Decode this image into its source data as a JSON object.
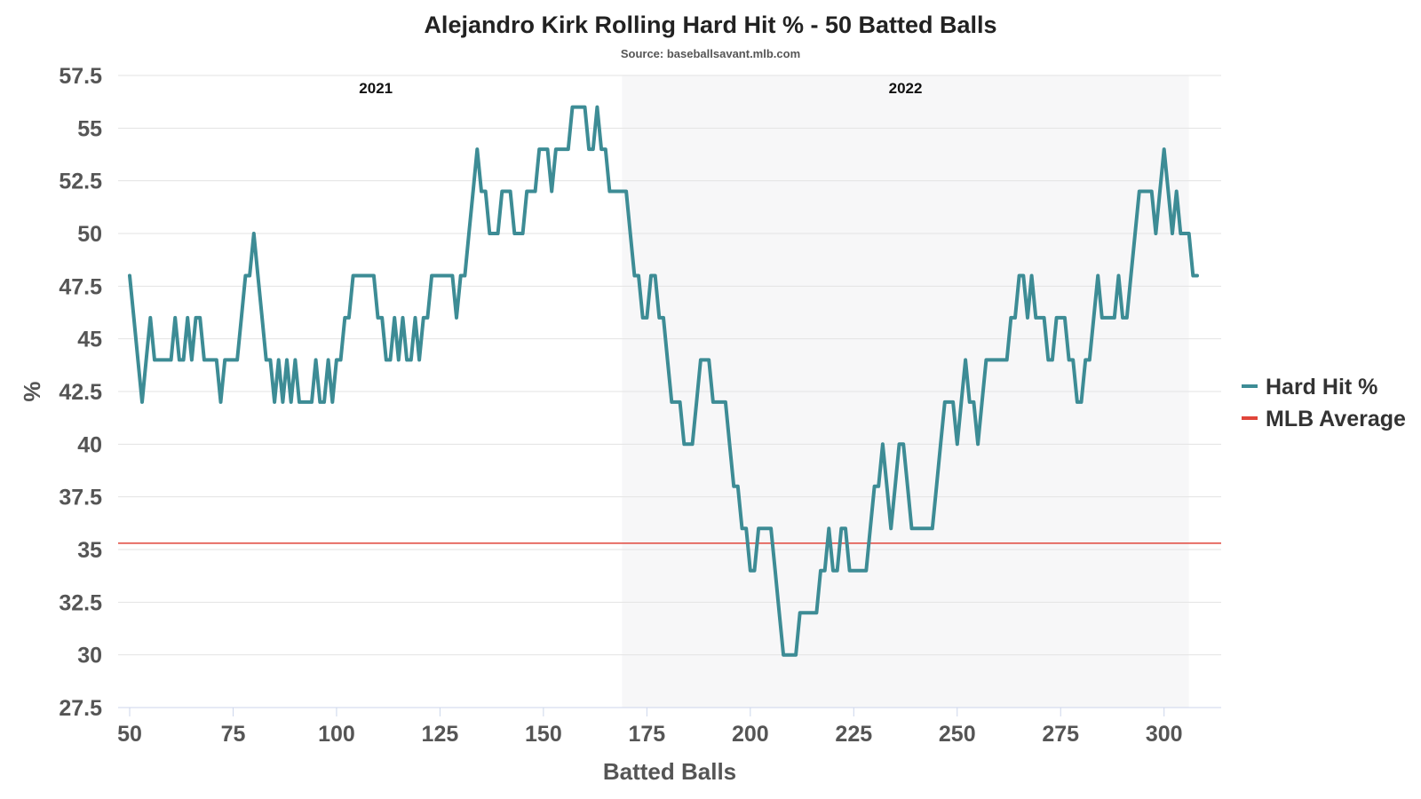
{
  "chart_data": {
    "type": "line",
    "title": "Alejandro Kirk Rolling Hard Hit % - 50 Batted Balls",
    "subtitle": "Source: baseballsavant.mlb.com",
    "xlabel": "Batted Balls",
    "ylabel": "%",
    "xlim": [
      50,
      305
    ],
    "ylim": [
      27.5,
      57.5
    ],
    "x_ticks": [
      "50",
      "75",
      "100",
      "125",
      "150",
      "175",
      "200",
      "225",
      "250",
      "275",
      "300"
    ],
    "y_ticks": [
      "27.5",
      "30",
      "32.5",
      "35",
      "37.5",
      "40",
      "42.5",
      "45",
      "47.5",
      "50",
      "52.5",
      "55",
      "57.5"
    ],
    "grid": true,
    "legend_position": "right",
    "seasons": [
      {
        "label": "2021",
        "x_range": [
          50,
          169
        ],
        "shaded": false
      },
      {
        "label": "2022",
        "x_range": [
          169,
          306
        ],
        "shaded": true
      }
    ],
    "reference_lines": [
      {
        "name": "MLB Average",
        "y": 35.3,
        "color": "#e0453a"
      }
    ],
    "series": [
      {
        "name": "Hard Hit %",
        "color": "#3d8c95",
        "points": [
          [
            50,
            48
          ],
          [
            51,
            46
          ],
          [
            52,
            44
          ],
          [
            53,
            42
          ],
          [
            54,
            44
          ],
          [
            55,
            46
          ],
          [
            56,
            44
          ],
          [
            57,
            44
          ],
          [
            58,
            44
          ],
          [
            59,
            44
          ],
          [
            60,
            44
          ],
          [
            61,
            46
          ],
          [
            62,
            44
          ],
          [
            63,
            44
          ],
          [
            64,
            46
          ],
          [
            65,
            44
          ],
          [
            66,
            46
          ],
          [
            67,
            46
          ],
          [
            68,
            44
          ],
          [
            69,
            44
          ],
          [
            70,
            44
          ],
          [
            71,
            44
          ],
          [
            72,
            42
          ],
          [
            73,
            44
          ],
          [
            74,
            44
          ],
          [
            75,
            44
          ],
          [
            76,
            44
          ],
          [
            77,
            46
          ],
          [
            78,
            48
          ],
          [
            79,
            48
          ],
          [
            80,
            50
          ],
          [
            81,
            48
          ],
          [
            82,
            46
          ],
          [
            83,
            44
          ],
          [
            84,
            44
          ],
          [
            85,
            42
          ],
          [
            86,
            44
          ],
          [
            87,
            42
          ],
          [
            88,
            44
          ],
          [
            89,
            42
          ],
          [
            90,
            44
          ],
          [
            91,
            42
          ],
          [
            92,
            42
          ],
          [
            93,
            42
          ],
          [
            94,
            42
          ],
          [
            95,
            44
          ],
          [
            96,
            42
          ],
          [
            97,
            42
          ],
          [
            98,
            44
          ],
          [
            99,
            42
          ],
          [
            100,
            44
          ],
          [
            101,
            44
          ],
          [
            102,
            46
          ],
          [
            103,
            46
          ],
          [
            104,
            48
          ],
          [
            105,
            48
          ],
          [
            106,
            48
          ],
          [
            107,
            48
          ],
          [
            108,
            48
          ],
          [
            109,
            48
          ],
          [
            110,
            46
          ],
          [
            111,
            46
          ],
          [
            112,
            44
          ],
          [
            113,
            44
          ],
          [
            114,
            46
          ],
          [
            115,
            44
          ],
          [
            116,
            46
          ],
          [
            117,
            44
          ],
          [
            118,
            44
          ],
          [
            119,
            46
          ],
          [
            120,
            44
          ],
          [
            121,
            46
          ],
          [
            122,
            46
          ],
          [
            123,
            48
          ],
          [
            124,
            48
          ],
          [
            125,
            48
          ],
          [
            126,
            48
          ],
          [
            127,
            48
          ],
          [
            128,
            48
          ],
          [
            129,
            46
          ],
          [
            130,
            48
          ],
          [
            131,
            48
          ],
          [
            132,
            50
          ],
          [
            133,
            52
          ],
          [
            134,
            54
          ],
          [
            135,
            52
          ],
          [
            136,
            52
          ],
          [
            137,
            50
          ],
          [
            138,
            50
          ],
          [
            139,
            50
          ],
          [
            140,
            52
          ],
          [
            141,
            52
          ],
          [
            142,
            52
          ],
          [
            143,
            50
          ],
          [
            144,
            50
          ],
          [
            145,
            50
          ],
          [
            146,
            52
          ],
          [
            147,
            52
          ],
          [
            148,
            52
          ],
          [
            149,
            54
          ],
          [
            150,
            54
          ],
          [
            151,
            54
          ],
          [
            152,
            52
          ],
          [
            153,
            54
          ],
          [
            154,
            54
          ],
          [
            155,
            54
          ],
          [
            156,
            54
          ],
          [
            157,
            56
          ],
          [
            158,
            56
          ],
          [
            159,
            56
          ],
          [
            160,
            56
          ],
          [
            161,
            54
          ],
          [
            162,
            54
          ],
          [
            163,
            56
          ],
          [
            164,
            54
          ],
          [
            165,
            54
          ],
          [
            166,
            52
          ],
          [
            167,
            52
          ],
          [
            168,
            52
          ],
          [
            169,
            52
          ],
          [
            170,
            52
          ],
          [
            171,
            50
          ],
          [
            172,
            48
          ],
          [
            173,
            48
          ],
          [
            174,
            46
          ],
          [
            175,
            46
          ],
          [
            176,
            48
          ],
          [
            177,
            48
          ],
          [
            178,
            46
          ],
          [
            179,
            46
          ],
          [
            180,
            44
          ],
          [
            181,
            42
          ],
          [
            182,
            42
          ],
          [
            183,
            42
          ],
          [
            184,
            40
          ],
          [
            185,
            40
          ],
          [
            186,
            40
          ],
          [
            187,
            42
          ],
          [
            188,
            44
          ],
          [
            189,
            44
          ],
          [
            190,
            44
          ],
          [
            191,
            42
          ],
          [
            192,
            42
          ],
          [
            193,
            42
          ],
          [
            194,
            42
          ],
          [
            195,
            40
          ],
          [
            196,
            38
          ],
          [
            197,
            38
          ],
          [
            198,
            36
          ],
          [
            199,
            36
          ],
          [
            200,
            34
          ],
          [
            201,
            34
          ],
          [
            202,
            36
          ],
          [
            203,
            36
          ],
          [
            204,
            36
          ],
          [
            205,
            36
          ],
          [
            206,
            34
          ],
          [
            207,
            32
          ],
          [
            208,
            30
          ],
          [
            209,
            30
          ],
          [
            210,
            30
          ],
          [
            211,
            30
          ],
          [
            212,
            32
          ],
          [
            213,
            32
          ],
          [
            214,
            32
          ],
          [
            215,
            32
          ],
          [
            216,
            32
          ],
          [
            217,
            34
          ],
          [
            218,
            34
          ],
          [
            219,
            36
          ],
          [
            220,
            34
          ],
          [
            221,
            34
          ],
          [
            222,
            36
          ],
          [
            223,
            36
          ],
          [
            224,
            34
          ],
          [
            225,
            34
          ],
          [
            226,
            34
          ],
          [
            227,
            34
          ],
          [
            228,
            34
          ],
          [
            229,
            36
          ],
          [
            230,
            38
          ],
          [
            231,
            38
          ],
          [
            232,
            40
          ],
          [
            233,
            38
          ],
          [
            234,
            36
          ],
          [
            235,
            38
          ],
          [
            236,
            40
          ],
          [
            237,
            40
          ],
          [
            238,
            38
          ],
          [
            239,
            36
          ],
          [
            240,
            36
          ],
          [
            241,
            36
          ],
          [
            242,
            36
          ],
          [
            243,
            36
          ],
          [
            244,
            36
          ],
          [
            245,
            38
          ],
          [
            246,
            40
          ],
          [
            247,
            42
          ],
          [
            248,
            42
          ],
          [
            249,
            42
          ],
          [
            250,
            40
          ],
          [
            251,
            42
          ],
          [
            252,
            44
          ],
          [
            253,
            42
          ],
          [
            254,
            42
          ],
          [
            255,
            40
          ],
          [
            256,
            42
          ],
          [
            257,
            44
          ],
          [
            258,
            44
          ],
          [
            259,
            44
          ],
          [
            260,
            44
          ],
          [
            261,
            44
          ],
          [
            262,
            44
          ],
          [
            263,
            46
          ],
          [
            264,
            46
          ],
          [
            265,
            48
          ],
          [
            266,
            48
          ],
          [
            267,
            46
          ],
          [
            268,
            48
          ],
          [
            269,
            46
          ],
          [
            270,
            46
          ],
          [
            271,
            46
          ],
          [
            272,
            44
          ],
          [
            273,
            44
          ],
          [
            274,
            46
          ],
          [
            275,
            46
          ],
          [
            276,
            46
          ],
          [
            277,
            44
          ],
          [
            278,
            44
          ],
          [
            279,
            42
          ],
          [
            280,
            42
          ],
          [
            281,
            44
          ],
          [
            282,
            44
          ],
          [
            283,
            46
          ],
          [
            284,
            48
          ],
          [
            285,
            46
          ],
          [
            286,
            46
          ],
          [
            287,
            46
          ],
          [
            288,
            46
          ],
          [
            289,
            48
          ],
          [
            290,
            46
          ],
          [
            291,
            46
          ],
          [
            292,
            48
          ],
          [
            293,
            50
          ],
          [
            294,
            52
          ],
          [
            295,
            52
          ],
          [
            296,
            52
          ],
          [
            297,
            52
          ],
          [
            298,
            50
          ],
          [
            299,
            52
          ],
          [
            300,
            54
          ],
          [
            301,
            52
          ],
          [
            302,
            50
          ],
          [
            303,
            52
          ],
          [
            304,
            50
          ],
          [
            305,
            50
          ],
          [
            306,
            50
          ],
          [
            307,
            48
          ],
          [
            308,
            48
          ]
        ]
      },
      {
        "name": "MLB Average",
        "color": "#e0453a",
        "constant_y": 35.3
      }
    ]
  }
}
